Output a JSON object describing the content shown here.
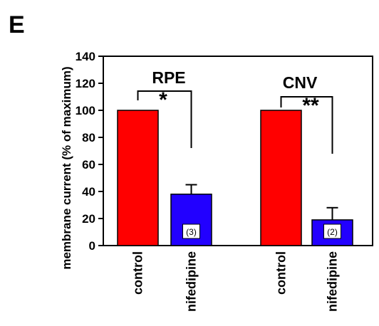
{
  "panel_label": "E",
  "chart_data": {
    "type": "bar",
    "title": "",
    "xlabel": "",
    "ylabel": "membrane current (% of maximum)",
    "ylim": [
      0,
      140
    ],
    "yticks": [
      0,
      20,
      40,
      60,
      80,
      100,
      120,
      140
    ],
    "grid": false,
    "groups": [
      {
        "name": "RPE",
        "significance": "*",
        "bars": [
          {
            "category": "control",
            "value": 100,
            "error": 0,
            "color": "#ff0000",
            "n_label": ""
          },
          {
            "category": "nifedipine",
            "value": 38,
            "error": 7,
            "color": "#2200ff",
            "n_label": "(3)"
          }
        ]
      },
      {
        "name": "CNV",
        "significance": "**",
        "bars": [
          {
            "category": "control",
            "value": 100,
            "error": 0,
            "color": "#ff0000",
            "n_label": ""
          },
          {
            "category": "nifedipine",
            "value": 19,
            "error": 9,
            "color": "#2200ff",
            "n_label": "(2)"
          }
        ]
      }
    ]
  }
}
